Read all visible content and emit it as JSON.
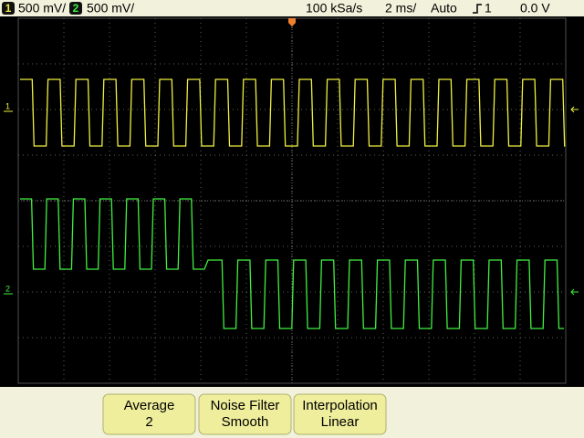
{
  "status_bar": {
    "ch1_number": "1",
    "ch1_scale": "500 mV/",
    "ch2_number": "2",
    "ch2_scale": "500 mV/",
    "sample_rate": "100 kSa/s",
    "time_scale": "2 ms/",
    "trigger_mode": "Auto",
    "trigger_source": "1",
    "trigger_level": "0.0 V"
  },
  "markers": {
    "ch1": "1",
    "ch2": "2"
  },
  "softkeys": [
    {
      "label": "Average",
      "value": "2"
    },
    {
      "label": "Noise Filter",
      "value": "Smooth"
    },
    {
      "label": "Interpolation",
      "value": "Linear"
    }
  ]
}
